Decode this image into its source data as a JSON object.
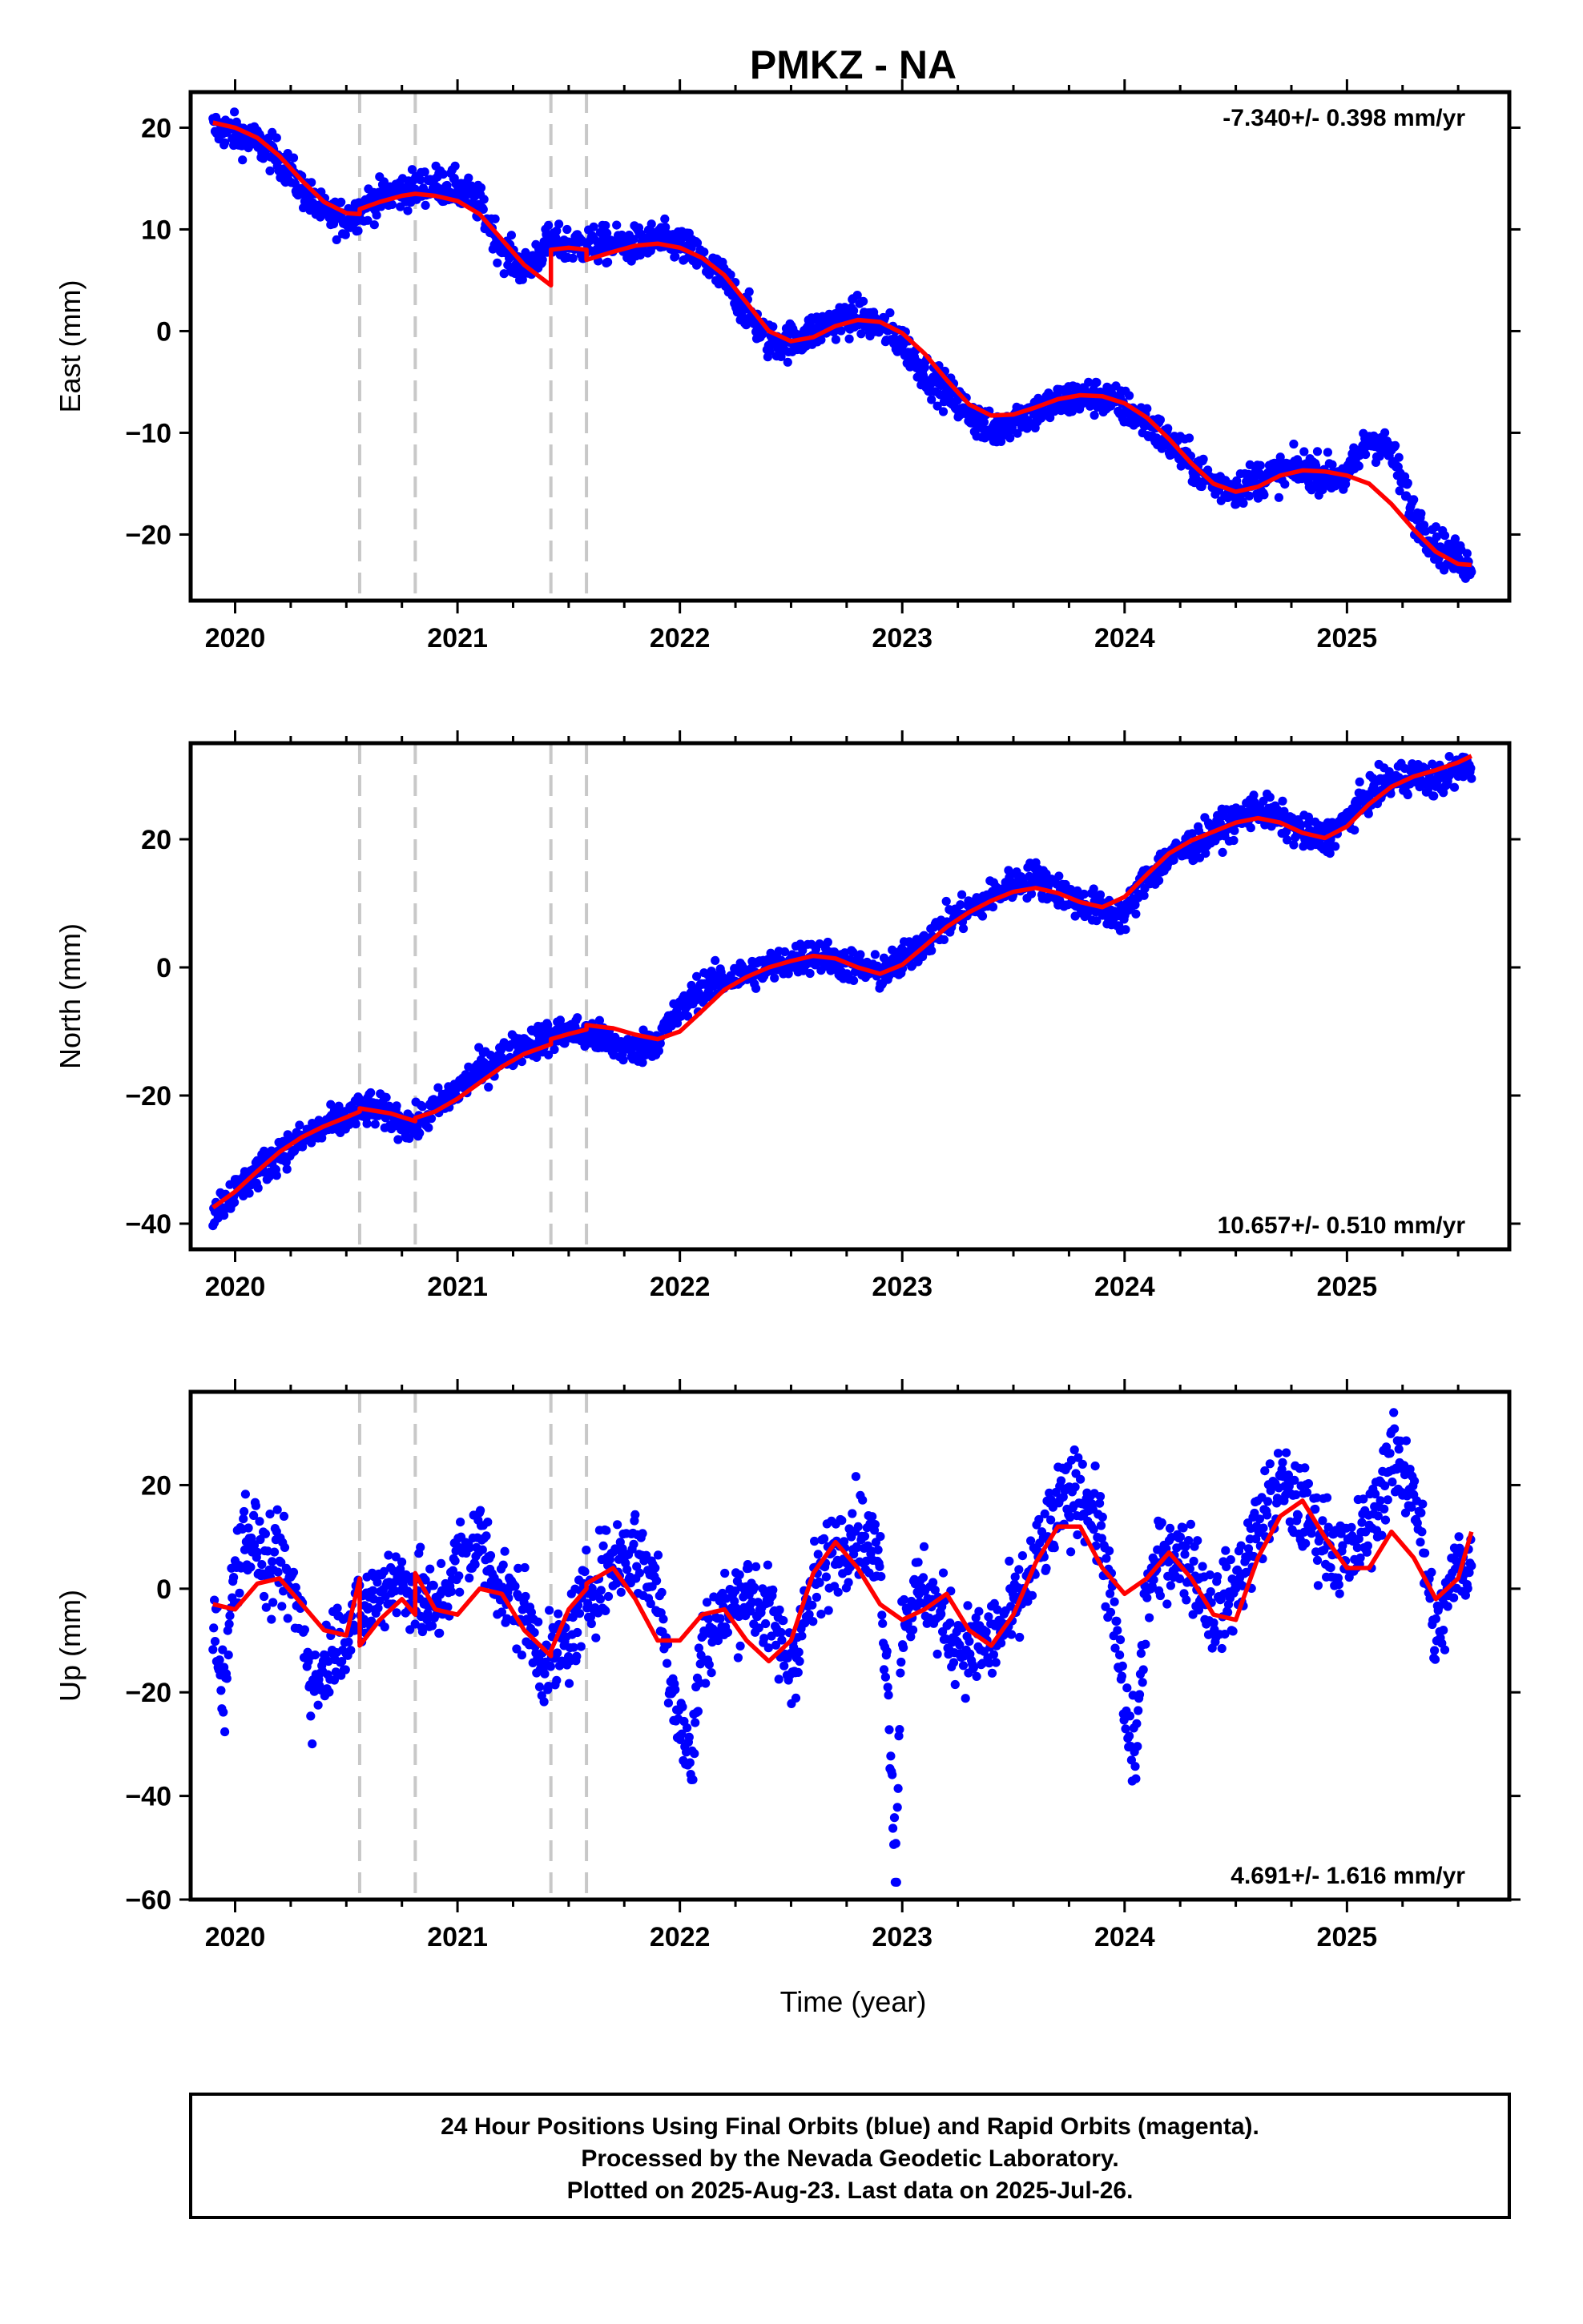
{
  "title": "PMKZ - NA",
  "colors": {
    "points": "#0000ff",
    "model": "#ff0000",
    "steps": "#c8c8c8",
    "frame": "#000000"
  },
  "footer": {
    "lines": [
      "24 Hour Positions Using Final Orbits (blue) and Rapid Orbits (magenta).",
      "Processed by the Nevada Geodetic Laboratory.",
      "Plotted on 2025-Aug-23. Last data on 2025-Jul-26."
    ]
  },
  "chart_data": [
    {
      "type": "scatter",
      "ylabel": "East (mm)",
      "rate": "-7.340+/- 0.398 mm/yr",
      "rate_position": "top-right",
      "xlim": [
        2019.8,
        2025.73
      ],
      "ylim": [
        -26.5,
        23.5
      ],
      "yticks": [
        20,
        10,
        0,
        -10,
        -20
      ],
      "xticks": [
        2020,
        2021,
        2022,
        2023,
        2024,
        2025
      ],
      "step_epochs": [
        2020.56,
        2020.81,
        2021.42,
        2021.58
      ],
      "series": [
        {
          "kind": "points",
          "x": [
            2019.9,
            2020.0,
            2020.1,
            2020.2,
            2020.3,
            2020.4,
            2020.5,
            2020.6,
            2020.7,
            2020.8,
            2020.9,
            2021.0,
            2021.1,
            2021.2,
            2021.3,
            2021.4,
            2021.5,
            2021.6,
            2021.7,
            2021.8,
            2021.9,
            2022.0,
            2022.1,
            2022.2,
            2022.3,
            2022.4,
            2022.5,
            2022.6,
            2022.7,
            2022.8,
            2022.9,
            2023.0,
            2023.1,
            2023.2,
            2023.3,
            2023.4,
            2023.5,
            2023.6,
            2023.7,
            2023.8,
            2023.9,
            2024.0,
            2024.1,
            2024.2,
            2024.3,
            2024.4,
            2024.5,
            2024.6,
            2024.7,
            2024.8,
            2024.9,
            2025.0,
            2025.1,
            2025.2,
            2025.3,
            2025.4,
            2025.5,
            2025.56
          ],
          "y": [
            20,
            19.5,
            18.5,
            17,
            14,
            11.5,
            11,
            12.5,
            13.5,
            14,
            14.5,
            14,
            12.5,
            8,
            6,
            8.5,
            8.5,
            8.5,
            8.5,
            8.5,
            9,
            8.5,
            7,
            5,
            2,
            -1,
            -1,
            0,
            1,
            1.5,
            0.5,
            -1,
            -4,
            -6,
            -8,
            -10,
            -8.5,
            -8,
            -7,
            -6.5,
            -6.5,
            -7.5,
            -9,
            -11,
            -13,
            -15,
            -15.5,
            -14.5,
            -14,
            -13.5,
            -14,
            -14.5,
            -10.5,
            -12,
            -18,
            -21,
            -22.5,
            -23
          ]
        },
        {
          "kind": "line",
          "x": [
            2019.9,
            2020.0,
            2020.1,
            2020.2,
            2020.3,
            2020.4,
            2020.5,
            2020.56,
            2020.56,
            2020.65,
            2020.75,
            2020.81,
            2020.81,
            2020.9,
            2021.0,
            2021.1,
            2021.2,
            2021.3,
            2021.42,
            2021.42,
            2021.5,
            2021.58,
            2021.58,
            2021.7,
            2021.8,
            2021.9,
            2022.0,
            2022.1,
            2022.2,
            2022.3,
            2022.4,
            2022.5,
            2022.6,
            2022.7,
            2022.8,
            2022.9,
            2023.0,
            2023.1,
            2023.2,
            2023.3,
            2023.4,
            2023.5,
            2023.6,
            2023.7,
            2023.8,
            2023.9,
            2024.0,
            2024.1,
            2024.2,
            2024.3,
            2024.4,
            2024.5,
            2024.6,
            2024.7,
            2024.8,
            2024.9,
            2025.0,
            2025.1,
            2025.2,
            2025.3,
            2025.4,
            2025.5,
            2025.56
          ],
          "y": [
            20.5,
            20,
            19,
            17.2,
            14.8,
            12.7,
            11.6,
            11.5,
            12,
            12.7,
            13.3,
            13.5,
            13.5,
            13.3,
            12.8,
            11.5,
            9,
            6.5,
            4.5,
            8,
            8.2,
            8,
            7,
            7.8,
            8.4,
            8.6,
            8.2,
            7.2,
            5.5,
            2.8,
            0,
            -1,
            -0.6,
            0.5,
            1.1,
            0.9,
            -0.2,
            -2.2,
            -4.8,
            -7.2,
            -8.3,
            -8.2,
            -7.5,
            -6.7,
            -6.3,
            -6.4,
            -7.1,
            -8.5,
            -10.6,
            -13,
            -15,
            -15.8,
            -15.3,
            -14.2,
            -13.7,
            -13.8,
            -14.2,
            -15,
            -17,
            -19.5,
            -21.7,
            -22.9,
            -23
          ]
        }
      ]
    },
    {
      "type": "scatter",
      "ylabel": "North (mm)",
      "rate": "10.657+/- 0.510 mm/yr",
      "rate_position": "bottom-right",
      "xlim": [
        2019.8,
        2025.73
      ],
      "ylim": [
        -44,
        35
      ],
      "yticks": [
        20,
        0,
        -20,
        -40
      ],
      "xticks": [
        2020,
        2021,
        2022,
        2023,
        2024,
        2025
      ],
      "step_epochs": [
        2020.56,
        2020.81,
        2021.42,
        2021.58
      ],
      "series": [
        {
          "kind": "points",
          "x": [
            2019.9,
            2020.0,
            2020.1,
            2020.2,
            2020.3,
            2020.4,
            2020.5,
            2020.6,
            2020.7,
            2020.8,
            2020.9,
            2021.0,
            2021.1,
            2021.2,
            2021.3,
            2021.4,
            2021.5,
            2021.6,
            2021.7,
            2021.8,
            2021.9,
            2022.0,
            2022.1,
            2022.2,
            2022.3,
            2022.4,
            2022.5,
            2022.6,
            2022.7,
            2022.8,
            2022.9,
            2023.0,
            2023.1,
            2023.2,
            2023.3,
            2023.4,
            2023.5,
            2023.6,
            2023.7,
            2023.8,
            2023.9,
            2024.0,
            2024.1,
            2024.2,
            2024.3,
            2024.4,
            2024.5,
            2024.6,
            2024.7,
            2024.8,
            2024.9,
            2025.0,
            2025.1,
            2025.2,
            2025.3,
            2025.4,
            2025.5,
            2025.56
          ],
          "y": [
            -38,
            -35,
            -32,
            -29,
            -27,
            -25,
            -23.5,
            -22,
            -23,
            -25,
            -22,
            -19,
            -16,
            -14,
            -12,
            -11,
            -10,
            -10.5,
            -12,
            -13,
            -11,
            -7,
            -3,
            -2,
            -1,
            0,
            1,
            2,
            1,
            0,
            -1,
            1,
            4,
            7,
            9,
            11,
            13,
            14,
            12,
            10,
            9,
            8,
            14,
            17,
            19,
            21,
            23,
            25,
            23,
            21,
            20,
            23,
            27,
            29,
            30,
            29,
            31,
            31
          ]
        },
        {
          "kind": "line",
          "x": [
            2019.9,
            2020.0,
            2020.1,
            2020.2,
            2020.3,
            2020.4,
            2020.5,
            2020.56,
            2020.56,
            2020.7,
            2020.81,
            2020.81,
            2020.9,
            2021.0,
            2021.1,
            2021.2,
            2021.3,
            2021.42,
            2021.42,
            2021.5,
            2021.58,
            2021.58,
            2021.7,
            2021.8,
            2021.9,
            2022.0,
            2022.1,
            2022.2,
            2022.3,
            2022.4,
            2022.5,
            2022.6,
            2022.7,
            2022.8,
            2022.9,
            2023.0,
            2023.1,
            2023.2,
            2023.3,
            2023.4,
            2023.5,
            2023.6,
            2023.7,
            2023.8,
            2023.9,
            2024.0,
            2024.1,
            2024.2,
            2024.3,
            2024.4,
            2024.5,
            2024.6,
            2024.7,
            2024.8,
            2024.9,
            2025.0,
            2025.1,
            2025.2,
            2025.3,
            2025.4,
            2025.5,
            2025.56
          ],
          "y": [
            -37.5,
            -35,
            -31.8,
            -28.8,
            -26.5,
            -24.8,
            -23.4,
            -22.5,
            -22,
            -22.8,
            -24,
            -23.5,
            -22.5,
            -20.5,
            -18,
            -15.5,
            -13.5,
            -12,
            -11.2,
            -10.4,
            -9.7,
            -9,
            -9.5,
            -10.5,
            -11.2,
            -10,
            -6.8,
            -3.5,
            -1.5,
            0,
            1,
            1.8,
            1.4,
            0,
            -1,
            0.4,
            3.3,
            6.3,
            8.6,
            10.4,
            11.8,
            12.4,
            11.6,
            10.2,
            9.4,
            11,
            14.5,
            17.8,
            19.8,
            21.2,
            22.6,
            23.3,
            22.6,
            21,
            20.2,
            22,
            25.5,
            28.2,
            29.8,
            30.8,
            32,
            33
          ]
        }
      ]
    },
    {
      "type": "scatter",
      "ylabel": "Up (mm)",
      "xlabel": "Time (year)",
      "rate": "4.691+/- 1.616 mm/yr",
      "rate_position": "bottom-right",
      "xlim": [
        2019.8,
        2025.73
      ],
      "ylim": [
        -60,
        38
      ],
      "yticks": [
        20,
        0,
        -20,
        -40,
        -60
      ],
      "xticks": [
        2020,
        2021,
        2022,
        2023,
        2024,
        2025
      ],
      "step_epochs": [
        2020.56,
        2020.81,
        2021.42,
        2021.58
      ],
      "series": [
        {
          "kind": "points",
          "x": [
            2019.9,
            2019.95,
            2020.0,
            2020.05,
            2020.1,
            2020.15,
            2020.2,
            2020.3,
            2020.35,
            2020.4,
            2020.45,
            2020.5,
            2020.55,
            2020.6,
            2020.7,
            2020.8,
            2020.9,
            2021.0,
            2021.1,
            2021.2,
            2021.3,
            2021.4,
            2021.5,
            2021.6,
            2021.7,
            2021.8,
            2021.9,
            2021.95,
            2022.0,
            2022.05,
            2022.1,
            2022.2,
            2022.3,
            2022.4,
            2022.5,
            2022.6,
            2022.7,
            2022.8,
            2022.9,
            2022.95,
            2022.97,
            2023.0,
            2023.1,
            2023.2,
            2023.3,
            2023.4,
            2023.5,
            2023.6,
            2023.7,
            2023.8,
            2023.9,
            2023.98,
            2024.0,
            2024.05,
            2024.1,
            2024.2,
            2024.3,
            2024.4,
            2024.5,
            2024.6,
            2024.7,
            2024.8,
            2024.9,
            2025.0,
            2025.1,
            2025.2,
            2025.3,
            2025.35,
            2025.4,
            2025.5,
            2025.56
          ],
          "y": [
            -5,
            -20,
            5,
            12,
            8,
            3,
            5,
            -5,
            -20,
            -15,
            -10,
            -8,
            -5,
            -3,
            2,
            0,
            -5,
            5,
            10,
            0,
            -5,
            -15,
            -10,
            0,
            5,
            8,
            0,
            -15,
            -25,
            -35,
            -10,
            -5,
            0,
            -5,
            -15,
            0,
            8,
            12,
            5,
            -30,
            -55,
            -5,
            0,
            -8,
            -12,
            -10,
            -5,
            5,
            15,
            20,
            10,
            -15,
            -25,
            -32,
            0,
            8,
            5,
            -5,
            0,
            12,
            20,
            15,
            10,
            5,
            12,
            25,
            20,
            5,
            -10,
            5,
            5
          ]
        },
        {
          "kind": "line",
          "x": [
            2019.9,
            2020.0,
            2020.1,
            2020.2,
            2020.3,
            2020.4,
            2020.5,
            2020.56,
            2020.56,
            2020.65,
            2020.75,
            2020.81,
            2020.81,
            2020.9,
            2021.0,
            2021.1,
            2021.2,
            2021.3,
            2021.42,
            2021.42,
            2021.5,
            2021.58,
            2021.58,
            2021.7,
            2021.8,
            2021.9,
            2022.0,
            2022.1,
            2022.2,
            2022.3,
            2022.4,
            2022.5,
            2022.6,
            2022.7,
            2022.8,
            2022.9,
            2023.0,
            2023.1,
            2023.2,
            2023.3,
            2023.4,
            2023.5,
            2023.6,
            2023.7,
            2023.8,
            2023.9,
            2024.0,
            2024.1,
            2024.2,
            2024.3,
            2024.4,
            2024.5,
            2024.6,
            2024.7,
            2024.8,
            2024.9,
            2025.0,
            2025.1,
            2025.2,
            2025.3,
            2025.4,
            2025.5,
            2025.56
          ],
          "y": [
            -3,
            -4,
            1,
            2,
            -3,
            -8,
            -9,
            2,
            -11,
            -6,
            -2,
            -5,
            3,
            -4,
            -5,
            0,
            -1,
            -8,
            -13,
            -12,
            -4,
            0,
            1,
            4,
            -2,
            -10,
            -10,
            -5,
            -4,
            -10,
            -14,
            -10,
            3,
            9,
            4,
            -3,
            -6,
            -4,
            -1,
            -8,
            -11,
            -5,
            5,
            12,
            12,
            4,
            -1,
            2,
            7,
            2,
            -5,
            -6,
            6,
            14,
            17,
            10,
            4,
            4,
            11,
            6,
            -2,
            2,
            11
          ]
        }
      ]
    }
  ]
}
